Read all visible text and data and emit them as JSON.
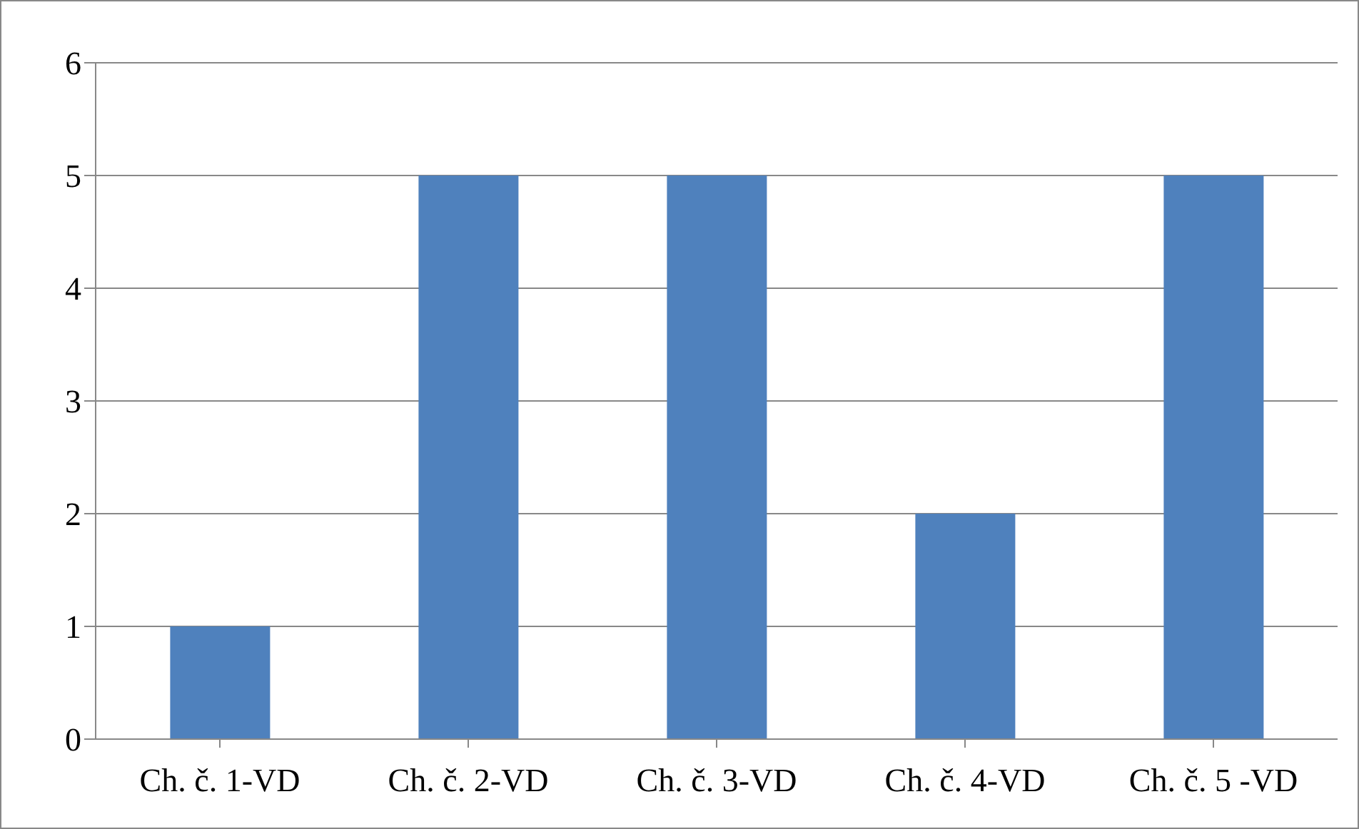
{
  "chart_data": {
    "type": "bar",
    "categories": [
      "Ch. č. 1-VD",
      "Ch. č. 2-VD",
      "Ch. č. 3-VD",
      "Ch. č. 4-VD",
      "Ch. č. 5 -VD"
    ],
    "values": [
      1,
      5,
      5,
      2,
      5
    ],
    "color": "#4f81bd",
    "ylim": [
      0,
      6
    ],
    "yticks": [
      0,
      1,
      2,
      3,
      4,
      5,
      6
    ],
    "grid": "y",
    "legend": false
  }
}
